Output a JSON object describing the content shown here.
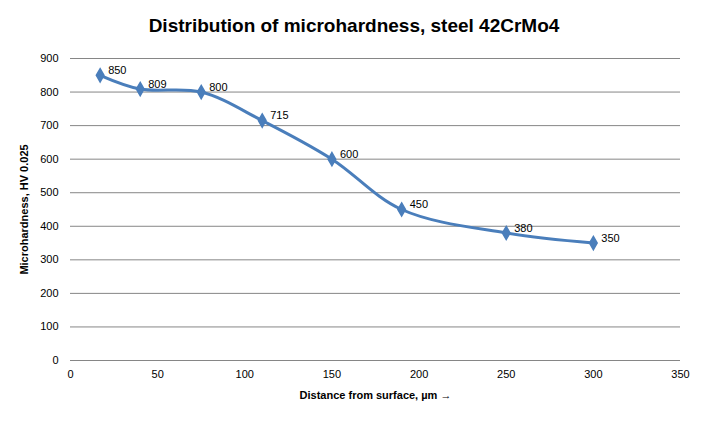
{
  "chart_data": {
    "type": "line",
    "title": "Distribution of microhardness, steel 42CrMo4",
    "x_label": "Distance from surface, µm",
    "y_label": "Microhardness, HV 0.025",
    "x": [
      17,
      40,
      75,
      110,
      150,
      190,
      250,
      300
    ],
    "values": [
      850,
      809,
      800,
      715,
      600,
      450,
      380,
      350
    ],
    "color": "#4a7ebb",
    "marker": "diamond",
    "line_style": "smooth",
    "data_labels": true,
    "xlim": [
      0,
      350
    ],
    "xticks": [
      0,
      50,
      100,
      150,
      200,
      250,
      300,
      350
    ],
    "ylim": [
      0,
      900
    ],
    "yticks": [
      0,
      100,
      200,
      300,
      400,
      500,
      600,
      700,
      800,
      900
    ],
    "grid": true
  }
}
